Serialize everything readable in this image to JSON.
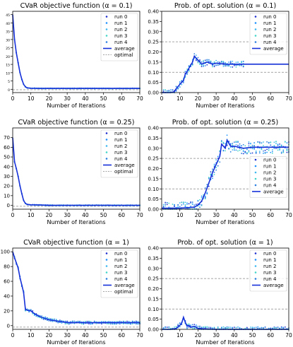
{
  "figure": {
    "colors": {
      "run_colors": [
        "#1f2fcf",
        "#1e90ff",
        "#3db8f0",
        "#42d6c8",
        "#2b7fe0"
      ],
      "average": "#1530d8",
      "optimal": "#888888",
      "axis": "#000000"
    }
  },
  "chart_data": [
    {
      "type": "line",
      "title": "CVaR objective function (α = 0.1)",
      "xlabel": "Number of Iterations",
      "ylabel": "",
      "xlim": [
        0,
        70
      ],
      "ylim": [
        -2,
        47
      ],
      "xticks": [
        0,
        10,
        20,
        30,
        40,
        50,
        60,
        70
      ],
      "yticks": [
        0,
        5,
        10,
        15,
        20,
        25,
        30,
        35,
        40,
        45
      ],
      "legend": [
        "run 0",
        "run 1",
        "run 2",
        "run 3",
        "run 4",
        "average",
        "optimal"
      ],
      "legend_position": "top-right",
      "optimal": -0.3,
      "average": {
        "x": [
          0,
          1,
          2,
          3,
          4,
          5,
          6,
          7,
          8,
          10,
          15,
          20,
          30,
          40,
          50,
          60,
          70
        ],
        "y": [
          45,
          30,
          22,
          16,
          10,
          6,
          3,
          1.5,
          0.8,
          0.6,
          0.5,
          0.5,
          0.5,
          0.5,
          0.5,
          0.5,
          0.5
        ]
      },
      "runs_scatter": {
        "x_end": 70,
        "spread": 0.2
      }
    },
    {
      "type": "line",
      "title": "Prob. of opt. solution (α = 0.1)",
      "xlabel": "Number of Iterations",
      "ylabel": "",
      "xlim": [
        0,
        70
      ],
      "ylim": [
        0,
        0.4
      ],
      "xticks": [
        0,
        10,
        20,
        30,
        40,
        50,
        60,
        70
      ],
      "yticks": [
        0.0,
        0.05,
        0.1,
        0.15,
        0.2,
        0.25,
        0.3,
        0.35,
        0.4
      ],
      "hlines": [
        0.1,
        0.25
      ],
      "legend": [
        "run 0",
        "run 1",
        "run 2",
        "run 3",
        "run 4",
        "average"
      ],
      "legend_position": "top-right",
      "average": {
        "x": [
          0,
          5,
          7,
          8,
          10,
          12,
          13,
          15,
          17,
          18,
          20,
          22,
          25,
          28,
          30,
          35,
          40,
          44,
          45,
          50,
          60,
          70
        ],
        "y": [
          0,
          0,
          0.005,
          0.02,
          0.04,
          0.06,
          0.09,
          0.12,
          0.15,
          0.18,
          0.16,
          0.14,
          0.15,
          0.14,
          0.145,
          0.14,
          0.14,
          0.14,
          0.14,
          0.14,
          0.14,
          0.14
        ]
      },
      "runs_scatter": {
        "x_end": 45,
        "spread": 0.015
      }
    },
    {
      "type": "line",
      "title": "CVaR objective function (α = 0.25)",
      "xlabel": "Number of Iterations",
      "ylabel": "",
      "xlim": [
        0,
        70
      ],
      "ylim": [
        -4,
        80
      ],
      "xticks": [
        0,
        10,
        20,
        30,
        40,
        50,
        60,
        70
      ],
      "yticks": [
        0,
        10,
        20,
        30,
        40,
        50,
        60,
        70
      ],
      "legend": [
        "run 0",
        "run 1",
        "run 2",
        "run 3",
        "run 4",
        "average",
        "optimal"
      ],
      "legend_position": "top-right",
      "optimal": -1,
      "average": {
        "x": [
          0,
          1,
          2,
          3,
          4,
          5,
          6,
          7,
          8,
          10,
          15,
          20,
          30,
          40,
          50,
          60,
          70
        ],
        "y": [
          70,
          45,
          38,
          30,
          20,
          12,
          5,
          2,
          1,
          0.5,
          0.3,
          0,
          0,
          0,
          0,
          0,
          0
        ]
      },
      "runs_scatter": {
        "x_end": 70,
        "spread": 0.4
      }
    },
    {
      "type": "line",
      "title": "Prob. of opt. solution (α = 0.25)",
      "xlabel": "Number of Iterations",
      "ylabel": "",
      "xlim": [
        0,
        70
      ],
      "ylim": [
        0,
        0.4
      ],
      "xticks": [
        0,
        10,
        20,
        30,
        40,
        50,
        60,
        70
      ],
      "yticks": [
        0.0,
        0.05,
        0.1,
        0.15,
        0.2,
        0.25,
        0.3,
        0.35,
        0.4
      ],
      "hlines": [
        0.1,
        0.25
      ],
      "legend": [
        "run 0",
        "run 1",
        "run 2",
        "run 3",
        "run 4",
        "average"
      ],
      "legend_position": "center-right",
      "average": {
        "x": [
          0,
          5,
          10,
          15,
          18,
          20,
          22,
          24,
          26,
          28,
          30,
          32,
          33,
          35,
          36,
          38,
          40,
          45,
          50,
          60,
          70
        ],
        "y": [
          0.005,
          0.005,
          0.005,
          0.008,
          0.01,
          0.02,
          0.04,
          0.08,
          0.13,
          0.18,
          0.22,
          0.26,
          0.32,
          0.3,
          0.34,
          0.31,
          0.31,
          0.3,
          0.305,
          0.305,
          0.305
        ]
      },
      "runs_scatter": {
        "x_end": 70,
        "spread": 0.03
      }
    },
    {
      "type": "line",
      "title": "CVaR objective function (α = 1)",
      "xlabel": "Number of Iterations",
      "ylabel": "",
      "xlim": [
        0,
        70
      ],
      "ylim": [
        -5,
        105
      ],
      "xticks": [
        0,
        10,
        20,
        30,
        40,
        50,
        60,
        70
      ],
      "yticks": [
        0,
        20,
        40,
        60,
        80,
        100
      ],
      "legend": [
        "run 0",
        "run 1",
        "run 2",
        "run 3",
        "run 4",
        "average",
        "optimal"
      ],
      "legend_position": "top-right",
      "optimal": -2,
      "average": {
        "x": [
          0,
          1,
          2,
          3,
          4,
          5,
          6,
          7,
          8,
          10,
          12,
          15,
          20,
          25,
          30,
          40,
          50,
          60,
          70
        ],
        "y": [
          100,
          92,
          85,
          78,
          65,
          55,
          45,
          22,
          21,
          20,
          16,
          12,
          8,
          6,
          4,
          4,
          4,
          4,
          4
        ]
      },
      "runs_scatter": {
        "x_end": 70,
        "spread": 2
      }
    },
    {
      "type": "line",
      "title": "Prob. of opt. solution (α = 1)",
      "xlabel": "Number of Iterations",
      "ylabel": "",
      "xlim": [
        0,
        70
      ],
      "ylim": [
        0,
        0.4
      ],
      "xticks": [
        0,
        10,
        20,
        30,
        40,
        50,
        60,
        70
      ],
      "yticks": [
        0.0,
        0.05,
        0.1,
        0.15,
        0.2,
        0.25,
        0.3,
        0.35,
        0.4
      ],
      "hlines": [
        0.1,
        0.25
      ],
      "legend": [
        "run 0",
        "run 1",
        "run 2",
        "run 3",
        "run 4",
        "average"
      ],
      "legend_position": "top-right",
      "average": {
        "x": [
          0,
          5,
          8,
          10,
          11,
          12,
          13,
          14,
          15,
          16,
          18,
          20,
          22,
          25,
          30,
          40,
          50,
          60,
          70
        ],
        "y": [
          0,
          0,
          0.005,
          0.02,
          0.03,
          0.06,
          0.035,
          0.015,
          0.02,
          0.01,
          0.015,
          0.005,
          0.003,
          0.002,
          0,
          0,
          0,
          0,
          0
        ]
      },
      "runs_scatter": {
        "x_end": 70,
        "spread": 0.012
      }
    }
  ]
}
